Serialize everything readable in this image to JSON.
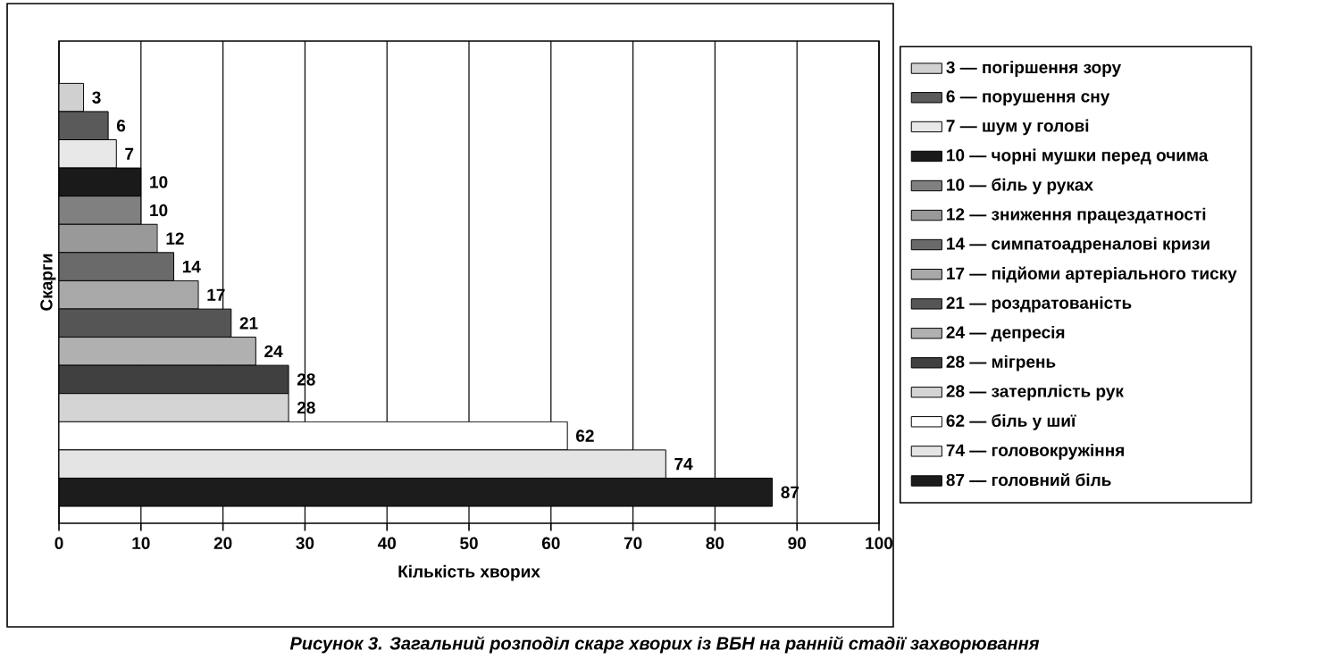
{
  "chart_data": {
    "type": "bar",
    "orientation": "horizontal",
    "xlabel": "Кількість хворих",
    "ylabel": "Скарги",
    "categories": [
      null
    ],
    "series": [
      {
        "name": "3 — погіршення зору",
        "color": "#d0d0d0",
        "values": [
          3
        ]
      },
      {
        "name": "6 — порушення сну",
        "color": "#5a5a5a",
        "values": [
          6
        ]
      },
      {
        "name": "7 — шум у голові",
        "color": "#e8e8e8",
        "values": [
          7
        ]
      },
      {
        "name": "10 — чорні мушки перед очима",
        "color": "#1a1a1a",
        "values": [
          10
        ]
      },
      {
        "name": "10 — біль у руках",
        "color": "#808080",
        "values": [
          10
        ]
      },
      {
        "name": "12 — зниження працездатності",
        "color": "#999999",
        "values": [
          12
        ]
      },
      {
        "name": "14 — симпатоадреналові кризи",
        "color": "#6a6a6a",
        "values": [
          14
        ]
      },
      {
        "name": "17 — підйоми артеріального тиску",
        "color": "#a8a8a8",
        "values": [
          17
        ]
      },
      {
        "name": "21 — роздратованість",
        "color": "#555555",
        "values": [
          21
        ]
      },
      {
        "name": "24 — депресія",
        "color": "#b0b0b0",
        "values": [
          24
        ]
      },
      {
        "name": "28 — мігрень",
        "color": "#404040",
        "values": [
          28
        ]
      },
      {
        "name": "28 — затерплість рук",
        "color": "#d4d4d4",
        "values": [
          28
        ]
      },
      {
        "name": "62 — біль у шиї",
        "color": "#ffffff",
        "values": [
          62
        ]
      },
      {
        "name": "74 — головокружіння",
        "color": "#e4e4e4",
        "values": [
          74
        ]
      },
      {
        "name": "87 — головний біль",
        "color": "#1c1c1c",
        "values": [
          87
        ]
      }
    ],
    "xlim": [
      0,
      100
    ],
    "xticks": [
      0,
      10,
      20,
      30,
      40,
      50,
      60,
      70,
      80,
      90,
      100
    ],
    "grid": "x",
    "legend": "right",
    "tick_labels": "x",
    "data_labels": true,
    "annotations": [
      "Рисунок 3. Загальний розподіл скарг хворих із ВБН на ранній стадії захворювання"
    ]
  }
}
